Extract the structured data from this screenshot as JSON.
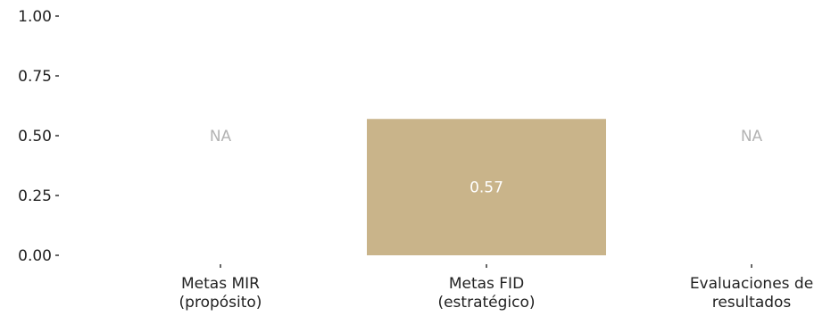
{
  "chart_data": {
    "type": "bar",
    "categories": [
      [
        "Metas MIR",
        "(propósito)"
      ],
      [
        "Metas FID",
        "(estratégico)"
      ],
      [
        "Evaluaciones de",
        "resultados"
      ]
    ],
    "values": [
      null,
      0.57,
      null
    ],
    "data_labels": [
      "NA",
      "0.57",
      "NA"
    ],
    "y_ticks": [
      "0.00",
      "0.25",
      "0.50",
      "0.75",
      "1.00"
    ],
    "ylim": [
      0,
      1
    ],
    "grid": false,
    "title": "",
    "xlabel": "",
    "ylabel": "",
    "colors": {
      "bar": "#c9b48a",
      "na": "#b3b3b3",
      "value_label": "#ffffff",
      "text": "#222222"
    }
  }
}
